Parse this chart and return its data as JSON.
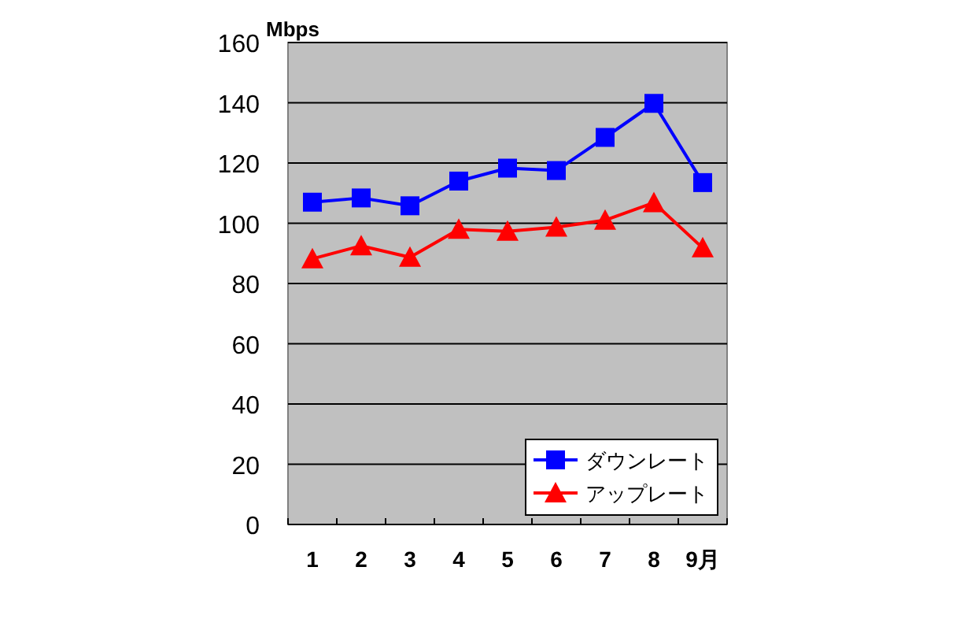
{
  "chart_data": {
    "type": "line",
    "ylabel": "Mbps",
    "categories": [
      "1",
      "2",
      "3",
      "4",
      "5",
      "6",
      "7",
      "8",
      "9月"
    ],
    "series": [
      {
        "name": "ダウンレート",
        "color": "#0000ff",
        "marker": "square",
        "values": [
          107,
          108.4,
          105.8,
          114,
          118.3,
          117.5,
          128.5,
          139.8,
          113.5
        ]
      },
      {
        "name": "アップレート",
        "color": "#ff0000",
        "marker": "triangle",
        "values": [
          88.2,
          92.5,
          88.7,
          98,
          97.3,
          98.7,
          101,
          106.8,
          91.8
        ]
      }
    ],
    "ylim": [
      0,
      160
    ],
    "yticks": [
      0,
      20,
      40,
      60,
      80,
      100,
      120,
      140,
      160
    ],
    "grid": "y",
    "legend": "bottom right"
  }
}
